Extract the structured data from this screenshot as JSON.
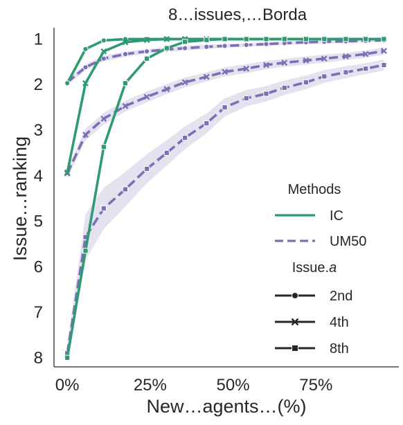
{
  "chart_data": {
    "type": "line",
    "title": "8…issues,…Borda",
    "xlabel": "New…agents…(%)",
    "ylabel": "Issue…ranking",
    "x_ticks": [
      {
        "value": 0,
        "label": "0%"
      },
      {
        "value": 25,
        "label": "25%"
      },
      {
        "value": 50,
        "label": "50%"
      },
      {
        "value": 75,
        "label": "75%"
      }
    ],
    "y_ticks": [
      1,
      2,
      3,
      4,
      5,
      6,
      7,
      8
    ],
    "xlim": [
      -4,
      100
    ],
    "ylim": [
      8.2,
      0.75
    ],
    "y_inverted": true,
    "grid": false,
    "legend": {
      "placement": "right",
      "methods_title": "Methods",
      "methods": [
        {
          "label": "IC",
          "color": "#2e9a73",
          "dash": "solid"
        },
        {
          "label": "UM50",
          "color": "#7b6fb5",
          "dash": "dashed"
        }
      ],
      "issue_title": "Issue",
      "issue_title_suffix": "a",
      "issues": [
        {
          "label": "2nd",
          "marker": "circle"
        },
        {
          "label": "4th",
          "marker": "x"
        },
        {
          "label": "8th",
          "marker": "square"
        }
      ]
    },
    "colors": {
      "IC": "#2e9a73",
      "UM50": "#7b6fb5",
      "axis": "#262626"
    },
    "series": [
      {
        "method": "IC",
        "issue": "2nd",
        "marker": "circle",
        "x": [
          0,
          5.5,
          11,
          17.5,
          24,
          30,
          35.5,
          42,
          47.5,
          54,
          60,
          65.5,
          72,
          77.5,
          84,
          90,
          95.5
        ],
        "y": [
          1.97,
          1.22,
          1.03,
          1.0,
          1.0,
          1.0,
          1.0,
          1.0,
          1.0,
          1.0,
          1.0,
          1.0,
          1.0,
          1.0,
          1.0,
          1.0,
          1.0
        ]
      },
      {
        "method": "IC",
        "issue": "4th",
        "marker": "x",
        "x": [
          0,
          5.5,
          11,
          17.5,
          24,
          30,
          35.5,
          42,
          47.5,
          54,
          60,
          65.5,
          72,
          77.5,
          84,
          90,
          95.5
        ],
        "y": [
          3.93,
          1.97,
          1.27,
          1.07,
          1.02,
          1.0,
          1.0,
          1.0,
          1.0,
          1.0,
          1.0,
          1.0,
          1.0,
          1.0,
          1.0,
          1.0,
          1.0
        ]
      },
      {
        "method": "IC",
        "issue": "8th",
        "marker": "square",
        "x": [
          0,
          5.5,
          11,
          17.5,
          24,
          30,
          35.5,
          42,
          47.5,
          54,
          60,
          65.5,
          72,
          77.5,
          84,
          90,
          95.5
        ],
        "y": [
          8.0,
          5.65,
          3.37,
          1.97,
          1.43,
          1.2,
          1.06,
          1.02,
          1.0,
          1.0,
          1.0,
          1.0,
          1.0,
          1.0,
          1.0,
          1.0,
          1.0
        ]
      },
      {
        "method": "UM50",
        "issue": "2nd",
        "marker": "circle",
        "x": [
          0,
          5.5,
          11,
          17.5,
          24,
          30,
          35.5,
          42,
          47.5,
          54,
          60,
          65.5,
          72,
          77.5,
          84,
          90,
          95.5
        ],
        "y": [
          1.95,
          1.62,
          1.43,
          1.33,
          1.27,
          1.23,
          1.2,
          1.17,
          1.15,
          1.13,
          1.11,
          1.09,
          1.07,
          1.06,
          1.05,
          1.04,
          1.03
        ],
        "band": [
          0.07,
          0.07,
          0.06,
          0.06,
          0.05,
          0.05,
          0.05,
          0.05,
          0.04,
          0.04,
          0.04,
          0.04,
          0.04,
          0.04,
          0.03,
          0.03,
          0.03
        ]
      },
      {
        "method": "UM50",
        "issue": "4th",
        "marker": "x",
        "x": [
          0,
          5.5,
          11,
          17.5,
          24,
          30,
          35.5,
          42,
          47.5,
          54,
          60,
          65.5,
          72,
          77.5,
          84,
          90,
          95.5
        ],
        "y": [
          3.95,
          3.1,
          2.75,
          2.47,
          2.27,
          2.1,
          1.95,
          1.83,
          1.72,
          1.65,
          1.57,
          1.52,
          1.47,
          1.43,
          1.38,
          1.33,
          1.26
        ],
        "band": [
          0.1,
          0.13,
          0.13,
          0.12,
          0.12,
          0.11,
          0.11,
          0.1,
          0.1,
          0.1,
          0.09,
          0.09,
          0.09,
          0.09,
          0.08,
          0.08,
          0.08
        ]
      },
      {
        "method": "UM50",
        "issue": "8th",
        "marker": "square",
        "x": [
          0,
          5.5,
          11,
          17.5,
          24,
          30,
          35.5,
          42,
          47.5,
          54,
          60,
          65.5,
          72,
          77.5,
          84,
          90,
          95.5
        ],
        "y": [
          7.9,
          5.35,
          4.72,
          4.3,
          3.85,
          3.5,
          3.17,
          2.85,
          2.5,
          2.3,
          2.2,
          2.07,
          1.95,
          1.82,
          1.73,
          1.65,
          1.57
        ],
        "band": [
          0.2,
          0.5,
          0.45,
          0.38,
          0.32,
          0.28,
          0.25,
          0.22,
          0.2,
          0.18,
          0.17,
          0.16,
          0.15,
          0.14,
          0.13,
          0.12,
          0.12
        ]
      }
    ]
  }
}
